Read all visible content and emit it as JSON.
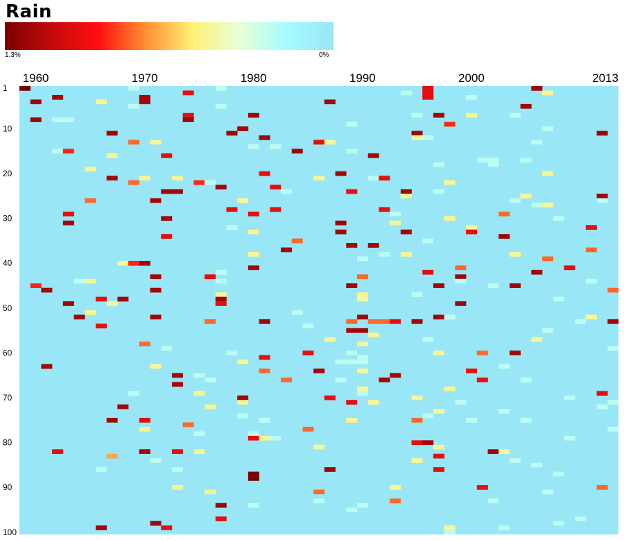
{
  "chart_data": {
    "type": "heatmap",
    "title": "Rain",
    "legend": {
      "min_label": "1.3%",
      "max_label": "0%",
      "vmin": 0,
      "vmax": 1.3,
      "unit": "%"
    },
    "colors": {
      "background": "#99e6f6",
      "scale": [
        "#7a0000",
        "#c40b0b",
        "#ff0f0f",
        "#ff9033",
        "#fff176",
        "#e8ffd6",
        "#a5fbff",
        "#99e6f6"
      ]
    },
    "x_range": [
      1959,
      2013
    ],
    "x_ticks": [
      {
        "value": 1960,
        "label": "1960"
      },
      {
        "value": 1970,
        "label": "1970"
      },
      {
        "value": 1980,
        "label": "1980"
      },
      {
        "value": 1990,
        "label": "1990"
      },
      {
        "value": 2000,
        "label": "2000"
      },
      {
        "value": 2013,
        "label": "2013"
      }
    ],
    "y_range": [
      1,
      100
    ],
    "y_ticks": [
      1,
      10,
      20,
      30,
      40,
      50,
      60,
      70,
      80,
      90,
      100
    ],
    "cells": [
      [
        1959,
        1,
        1.3
      ],
      [
        1960,
        4,
        1.2
      ],
      [
        1960,
        8,
        1.2
      ],
      [
        1960,
        45,
        0.9
      ],
      [
        1961,
        46,
        1.2
      ],
      [
        1961,
        63,
        1.2
      ],
      [
        1962,
        3,
        1.2
      ],
      [
        1962,
        8,
        0.25
      ],
      [
        1963,
        8,
        0.25
      ],
      [
        1962,
        15,
        0.25
      ],
      [
        1963,
        15,
        0.9
      ],
      [
        1963,
        29,
        1.0
      ],
      [
        1963,
        31,
        1.2
      ],
      [
        1963,
        49,
        1.2
      ],
      [
        1962,
        82,
        1.0
      ],
      [
        1964,
        44,
        0.25
      ],
      [
        1964,
        52,
        1.2
      ],
      [
        1965,
        19,
        0.5
      ],
      [
        1965,
        26,
        0.8
      ],
      [
        1965,
        44,
        0.5
      ],
      [
        1965,
        51,
        0.5
      ],
      [
        1966,
        4,
        0.5
      ],
      [
        1966,
        48,
        1.0
      ],
      [
        1966,
        54,
        1.0
      ],
      [
        1966,
        86,
        0.25
      ],
      [
        1966,
        99,
        1.2
      ],
      [
        1967,
        11,
        1.2
      ],
      [
        1967,
        16,
        0.5
      ],
      [
        1967,
        21,
        1.2
      ],
      [
        1967,
        49,
        0.5
      ],
      [
        1967,
        75,
        1.2
      ],
      [
        1967,
        83,
        0.7
      ],
      [
        1968,
        40,
        0.5
      ],
      [
        1968,
        48,
        1.2
      ],
      [
        1968,
        72,
        1.2
      ],
      [
        1969,
        1,
        0.25
      ],
      [
        1969,
        13,
        0.8
      ],
      [
        1969,
        22,
        0.8
      ],
      [
        1969,
        40,
        0.9
      ],
      [
        1969,
        69,
        0.25
      ],
      [
        1969,
        5,
        0.25
      ],
      [
        1970,
        3,
        1.2
      ],
      [
        1970,
        40,
        1.2
      ],
      [
        1970,
        58,
        0.8
      ],
      [
        1970,
        75,
        1.0
      ],
      [
        1970,
        77,
        0.5
      ],
      [
        1970,
        82,
        1.2
      ],
      [
        1970,
        21,
        0.5
      ],
      [
        1970,
        4,
        1.2
      ],
      [
        1971,
        13,
        0.5
      ],
      [
        1971,
        26,
        1.2
      ],
      [
        1971,
        43,
        1.2
      ],
      [
        1971,
        46,
        1.2
      ],
      [
        1971,
        52,
        1.2
      ],
      [
        1971,
        63,
        0.5
      ],
      [
        1971,
        84,
        0.25
      ],
      [
        1971,
        98,
        1.2
      ],
      [
        1972,
        16,
        1.0
      ],
      [
        1972,
        24,
        1.2
      ],
      [
        1972,
        34,
        1.0
      ],
      [
        1972,
        30,
        1.2
      ],
      [
        1972,
        59,
        0.25
      ],
      [
        1972,
        99,
        1.0
      ],
      [
        1973,
        21,
        0.5
      ],
      [
        1973,
        24,
        1.2
      ],
      [
        1973,
        65,
        1.2
      ],
      [
        1973,
        67,
        1.2
      ],
      [
        1973,
        82,
        1.0
      ],
      [
        1973,
        86,
        0.25
      ],
      [
        1973,
        90,
        0.5
      ],
      [
        1974,
        2,
        1.0
      ],
      [
        1974,
        7,
        1.0
      ],
      [
        1974,
        8,
        1.2
      ],
      [
        1974,
        76,
        0.8
      ],
      [
        1975,
        22,
        0.9
      ],
      [
        1975,
        65,
        0.25
      ],
      [
        1975,
        69,
        0.5
      ],
      [
        1975,
        78,
        0.25
      ],
      [
        1975,
        82,
        0.5
      ],
      [
        1976,
        22,
        0.25
      ],
      [
        1976,
        43,
        1.0
      ],
      [
        1976,
        53,
        0.8
      ],
      [
        1976,
        66,
        0.25
      ],
      [
        1976,
        72,
        0.5
      ],
      [
        1976,
        91,
        0.5
      ],
      [
        1977,
        1,
        0.25
      ],
      [
        1977,
        5,
        0.25
      ],
      [
        1977,
        23,
        1.2
      ],
      [
        1977,
        42,
        0.25
      ],
      [
        1977,
        44,
        0.25
      ],
      [
        1977,
        47,
        0.5
      ],
      [
        1977,
        48,
        1.2
      ],
      [
        1977,
        49,
        1.0
      ],
      [
        1977,
        94,
        1.2
      ],
      [
        1977,
        97,
        1.0
      ],
      [
        1978,
        11,
        1.2
      ],
      [
        1978,
        28,
        1.0
      ],
      [
        1978,
        32,
        0.25
      ],
      [
        1978,
        60,
        0.25
      ],
      [
        1979,
        10,
        1.2
      ],
      [
        1979,
        26,
        0.5
      ],
      [
        1979,
        62,
        0.5
      ],
      [
        1979,
        70,
        1.2
      ],
      [
        1979,
        71,
        0.5
      ],
      [
        1979,
        74,
        0.25
      ],
      [
        1980,
        7,
        1.2
      ],
      [
        1980,
        14,
        0.25
      ],
      [
        1980,
        29,
        1.0
      ],
      [
        1980,
        33,
        0.5
      ],
      [
        1980,
        38,
        0.5
      ],
      [
        1980,
        41,
        1.2
      ],
      [
        1980,
        78,
        0.25
      ],
      [
        1980,
        79,
        1.0
      ],
      [
        1980,
        87,
        1.3
      ],
      [
        1980,
        88,
        1.3
      ],
      [
        1980,
        94,
        0.25
      ],
      [
        1981,
        12,
        1.2
      ],
      [
        1981,
        20,
        1.0
      ],
      [
        1981,
        53,
        1.2
      ],
      [
        1981,
        61,
        1.0
      ],
      [
        1981,
        64,
        0.8
      ],
      [
        1981,
        75,
        0.25
      ],
      [
        1981,
        79,
        0.5
      ],
      [
        1982,
        14,
        0.25
      ],
      [
        1982,
        23,
        1.0
      ],
      [
        1982,
        28,
        1.0
      ],
      [
        1982,
        79,
        0.25
      ],
      [
        1983,
        24,
        0.25
      ],
      [
        1983,
        66,
        0.8
      ],
      [
        1983,
        37,
        1.2
      ],
      [
        1984,
        15,
        1.2
      ],
      [
        1984,
        35,
        0.8
      ],
      [
        1984,
        51,
        0.25
      ],
      [
        1985,
        54,
        0.25
      ],
      [
        1985,
        60,
        1.0
      ],
      [
        1985,
        77,
        0.8
      ],
      [
        1986,
        13,
        1.0
      ],
      [
        1986,
        21,
        0.5
      ],
      [
        1986,
        64,
        1.2
      ],
      [
        1986,
        81,
        0.5
      ],
      [
        1986,
        91,
        0.8
      ],
      [
        1986,
        93,
        0.25
      ],
      [
        1987,
        4,
        1.2
      ],
      [
        1987,
        13,
        0.5
      ],
      [
        1987,
        57,
        0.5
      ],
      [
        1987,
        70,
        1.0
      ],
      [
        1987,
        86,
        1.2
      ],
      [
        1988,
        20,
        1.2
      ],
      [
        1988,
        31,
        1.2
      ],
      [
        1988,
        33,
        1.2
      ],
      [
        1988,
        62,
        0.25
      ],
      [
        1988,
        66,
        0.25
      ],
      [
        1989,
        9,
        0.25
      ],
      [
        1989,
        15,
        0.25
      ],
      [
        1989,
        24,
        1.0
      ],
      [
        1989,
        36,
        1.2
      ],
      [
        1989,
        45,
        1.2
      ],
      [
        1989,
        53,
        0.8
      ],
      [
        1989,
        55,
        1.2
      ],
      [
        1989,
        60,
        0.25
      ],
      [
        1989,
        62,
        0.25
      ],
      [
        1989,
        71,
        1.0
      ],
      [
        1989,
        75,
        0.5
      ],
      [
        1989,
        95,
        0.25
      ],
      [
        1990,
        39,
        0.25
      ],
      [
        1990,
        43,
        0.8
      ],
      [
        1990,
        47,
        0.5
      ],
      [
        1990,
        48,
        0.5
      ],
      [
        1990,
        52,
        1.2
      ],
      [
        1990,
        55,
        1.2
      ],
      [
        1990,
        58,
        0.5
      ],
      [
        1990,
        61,
        0.25
      ],
      [
        1990,
        64,
        0.5
      ],
      [
        1990,
        68,
        0.5
      ],
      [
        1990,
        69,
        0.25
      ],
      [
        1990,
        94,
        0.25
      ],
      [
        1990,
        62,
        0.25
      ],
      [
        1991,
        16,
        1.2
      ],
      [
        1991,
        21,
        0.25
      ],
      [
        1991,
        36,
        1.2
      ],
      [
        1991,
        53,
        0.8
      ],
      [
        1991,
        56,
        0.5
      ],
      [
        1991,
        71,
        0.5
      ],
      [
        1992,
        21,
        1.0
      ],
      [
        1992,
        28,
        1.0
      ],
      [
        1992,
        38,
        0.25
      ],
      [
        1992,
        53,
        0.8
      ],
      [
        1992,
        66,
        1.2
      ],
      [
        1993,
        29,
        0.25
      ],
      [
        1993,
        31,
        0.5
      ],
      [
        1993,
        53,
        1.0
      ],
      [
        1993,
        65,
        1.2
      ],
      [
        1993,
        90,
        0.5
      ],
      [
        1993,
        93,
        0.8
      ],
      [
        1994,
        24,
        1.2
      ],
      [
        1994,
        25,
        0.5
      ],
      [
        1994,
        33,
        1.2
      ],
      [
        1994,
        38,
        0.5
      ],
      [
        1994,
        2,
        0.25
      ],
      [
        1995,
        7,
        0.25
      ],
      [
        1995,
        11,
        1.2
      ],
      [
        1995,
        12,
        0.5
      ],
      [
        1995,
        47,
        0.25
      ],
      [
        1995,
        53,
        1.2
      ],
      [
        1995,
        70,
        0.5
      ],
      [
        1995,
        75,
        0.8
      ],
      [
        1995,
        80,
        1.0
      ],
      [
        1995,
        84,
        0.5
      ],
      [
        1996,
        1,
        1.0
      ],
      [
        1996,
        2,
        1.0
      ],
      [
        1996,
        3,
        1.0
      ],
      [
        1996,
        12,
        0.25
      ],
      [
        1996,
        35,
        0.25
      ],
      [
        1996,
        42,
        1.0
      ],
      [
        1996,
        57,
        0.25
      ],
      [
        1996,
        74,
        0.25
      ],
      [
        1996,
        80,
        1.2
      ],
      [
        1997,
        7,
        1.2
      ],
      [
        1997,
        24,
        0.25
      ],
      [
        1997,
        45,
        1.2
      ],
      [
        1997,
        52,
        1.2
      ],
      [
        1997,
        60,
        0.5
      ],
      [
        1997,
        73,
        0.5
      ],
      [
        1997,
        81,
        0.5
      ],
      [
        1997,
        83,
        1.0
      ],
      [
        1997,
        86,
        1.0
      ],
      [
        1997,
        18,
        0.25
      ],
      [
        1998,
        9,
        0.9
      ],
      [
        1998,
        22,
        0.5
      ],
      [
        1998,
        30,
        0.5
      ],
      [
        1998,
        52,
        0.25
      ],
      [
        1998,
        68,
        0.5
      ],
      [
        1998,
        99,
        0.5
      ],
      [
        1998,
        100,
        0.25
      ],
      [
        1999,
        41,
        0.8
      ],
      [
        1999,
        43,
        1.2
      ],
      [
        1999,
        44,
        0.25
      ],
      [
        1999,
        49,
        1.2
      ],
      [
        1999,
        71,
        0.25
      ],
      [
        2000,
        3,
        0.25
      ],
      [
        2000,
        7,
        0.5
      ],
      [
        2000,
        32,
        0.5
      ],
      [
        2000,
        33,
        1.0
      ],
      [
        2000,
        64,
        1.0
      ],
      [
        2000,
        75,
        0.25
      ],
      [
        2001,
        17,
        0.25
      ],
      [
        2001,
        60,
        0.8
      ],
      [
        2001,
        66,
        1.0
      ],
      [
        2001,
        90,
        1.0
      ],
      [
        2002,
        17,
        0.25
      ],
      [
        2002,
        18,
        0.25
      ],
      [
        2002,
        45,
        0.25
      ],
      [
        2002,
        82,
        1.2
      ],
      [
        2002,
        93,
        0.25
      ],
      [
        2003,
        29,
        0.8
      ],
      [
        2003,
        34,
        1.2
      ],
      [
        2003,
        63,
        0.25
      ],
      [
        2003,
        73,
        0.25
      ],
      [
        2003,
        82,
        0.5
      ],
      [
        2003,
        99,
        0.25
      ],
      [
        2004,
        7,
        0.25
      ],
      [
        2004,
        26,
        0.25
      ],
      [
        2004,
        38,
        0.5
      ],
      [
        2004,
        45,
        1.2
      ],
      [
        2004,
        60,
        1.2
      ],
      [
        2004,
        84,
        0.25
      ],
      [
        2005,
        5,
        1.2
      ],
      [
        2005,
        17,
        0.25
      ],
      [
        2005,
        25,
        0.5
      ],
      [
        2005,
        66,
        0.25
      ],
      [
        2005,
        75,
        0.25
      ],
      [
        2006,
        1,
        1.2
      ],
      [
        2006,
        13,
        0.25
      ],
      [
        2006,
        27,
        0.25
      ],
      [
        2006,
        42,
        1.2
      ],
      [
        2006,
        57,
        0.5
      ],
      [
        2006,
        85,
        0.25
      ],
      [
        2007,
        2,
        0.5
      ],
      [
        2007,
        10,
        0.25
      ],
      [
        2007,
        20,
        0.5
      ],
      [
        2007,
        27,
        0.5
      ],
      [
        2007,
        39,
        0.8
      ],
      [
        2007,
        55,
        0.25
      ],
      [
        2007,
        91,
        0.25
      ],
      [
        2008,
        30,
        0.25
      ],
      [
        2008,
        48,
        0.25
      ],
      [
        2008,
        87,
        0.25
      ],
      [
        2008,
        98,
        0.25
      ],
      [
        2009,
        41,
        1.0
      ],
      [
        2009,
        70,
        0.25
      ],
      [
        2009,
        79,
        0.25
      ],
      [
        2010,
        53,
        0.25
      ],
      [
        2010,
        97,
        0.25
      ],
      [
        2011,
        32,
        1.0
      ],
      [
        2011,
        37,
        0.8
      ],
      [
        2011,
        44,
        0.25
      ],
      [
        2011,
        52,
        0.5
      ],
      [
        2012,
        25,
        1.2
      ],
      [
        2012,
        11,
        1.2
      ],
      [
        2012,
        26,
        0.25
      ],
      [
        2012,
        69,
        1.0
      ],
      [
        2012,
        72,
        0.25
      ],
      [
        2012,
        90,
        0.8
      ],
      [
        2013,
        46,
        0.8
      ],
      [
        2013,
        53,
        1.2
      ],
      [
        2013,
        59,
        0.25
      ],
      [
        2013,
        71,
        0.25
      ],
      [
        2013,
        77,
        0.25
      ]
    ]
  }
}
